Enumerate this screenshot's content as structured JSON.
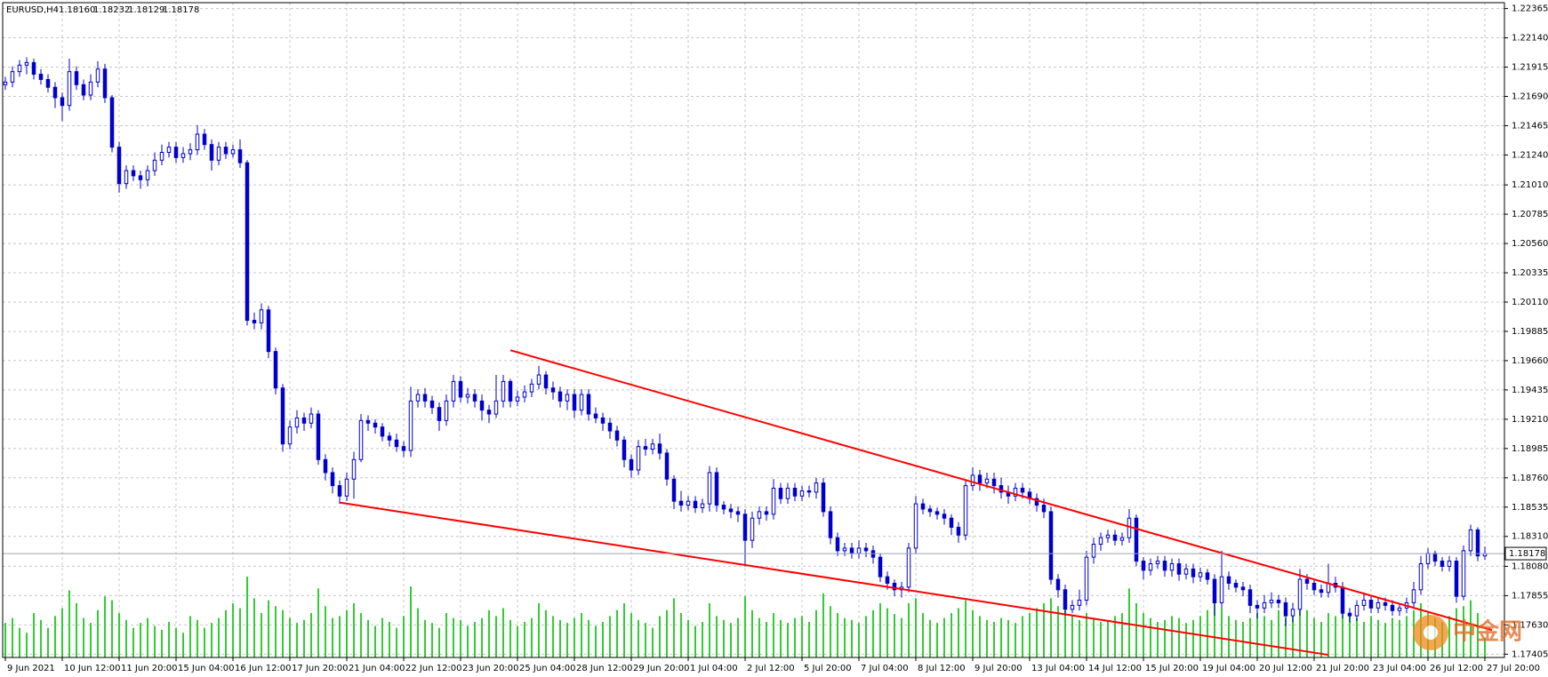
{
  "chart_data": {
    "type": "candlestick",
    "symbol": "EURUSD,H4",
    "last_bar_labels": [
      "1.18160",
      "1.18232",
      "1.18129",
      "1.18178"
    ],
    "watermark": "中金网",
    "up_color": "#ffffff",
    "down_color": "#0000cc",
    "line_color": "#0000cc",
    "volume_color": "#32cd32",
    "grid": true,
    "ylim": [
      1.1738,
      1.2241
    ],
    "yticks": [
      1.22365,
      {
        "value": 1.2214,
        "label": "1.22140"
      },
      1.21915,
      {
        "value": 1.2169,
        "label": "1.21690"
      },
      1.21465,
      {
        "value": 1.2124,
        "label": "1.21240"
      },
      {
        "value": 1.2101,
        "label": "1.21010"
      },
      1.20785,
      {
        "value": 1.2056,
        "label": "1.20560"
      },
      1.20335,
      {
        "value": 1.2011,
        "label": "1.20110"
      },
      1.19885,
      {
        "value": 1.1966,
        "label": "1.19660"
      },
      1.19435,
      {
        "value": 1.1921,
        "label": "1.19210"
      },
      1.18985,
      {
        "value": 1.1876,
        "label": "1.18760"
      },
      1.18535,
      {
        "value": 1.1831,
        "label": "1.18310"
      },
      {
        "value": 1.1808,
        "label": "1.18080"
      },
      1.17855,
      {
        "value": 1.1763,
        "label": "1.17630"
      },
      1.17405
    ],
    "categories": [
      "9 Jun 2021",
      null,
      null,
      null,
      null,
      null,
      null,
      null,
      "10 Jun 12:00",
      null,
      null,
      null,
      null,
      null,
      null,
      null,
      "11 Jun 20:00",
      null,
      null,
      null,
      null,
      null,
      null,
      null,
      "15 Jun 04:00",
      null,
      null,
      null,
      null,
      null,
      null,
      null,
      "16 Jun 12:00",
      null,
      null,
      null,
      null,
      null,
      null,
      null,
      "17 Jun 20:00",
      null,
      null,
      null,
      null,
      null,
      null,
      null,
      "21 Jun 04:00",
      null,
      null,
      null,
      null,
      null,
      null,
      null,
      "22 Jun 12:00",
      null,
      null,
      null,
      null,
      null,
      null,
      null,
      "23 Jun 20:00",
      null,
      null,
      null,
      null,
      null,
      null,
      null,
      "25 Jun 04:00",
      null,
      null,
      null,
      null,
      null,
      null,
      null,
      "28 Jun 12:00",
      null,
      null,
      null,
      null,
      null,
      null,
      null,
      "29 Jun 20:00",
      null,
      null,
      null,
      null,
      null,
      null,
      null,
      "1 Jul 04:00",
      null,
      null,
      null,
      null,
      null,
      null,
      null,
      "2 Jul 12:00",
      null,
      null,
      null,
      null,
      null,
      null,
      null,
      "5 Jul 20:00",
      null,
      null,
      null,
      null,
      null,
      null,
      null,
      "7 Jul 04:00",
      null,
      null,
      null,
      null,
      null,
      null,
      null,
      "8 Jul 12:00",
      null,
      null,
      null,
      null,
      null,
      null,
      null,
      "9 Jul 20:00",
      null,
      null,
      null,
      null,
      null,
      null,
      null,
      "13 Jul 04:00",
      null,
      null,
      null,
      null,
      null,
      null,
      null,
      "14 Jul 12:00",
      null,
      null,
      null,
      null,
      null,
      null,
      null,
      "15 Jul 20:00",
      null,
      null,
      null,
      null,
      null,
      null,
      null,
      "19 Jul 04:00",
      null,
      null,
      null,
      null,
      null,
      null,
      null,
      "20 Jul 12:00",
      null,
      null,
      null,
      null,
      null,
      null,
      null,
      "21 Jul 20:00",
      null,
      null,
      null,
      null,
      null,
      null,
      null,
      "23 Jul 04:00",
      null,
      null,
      null,
      null,
      null,
      null,
      null,
      "26 Jul 12:00",
      null,
      null,
      null,
      null,
      null,
      null,
      null,
      "27 Jul 20:00"
    ],
    "open": [
      1.2178,
      1.218,
      1.2188,
      1.2193,
      1.2195,
      1.2186,
      1.2182,
      1.2176,
      1.2168,
      1.2162,
      1.2188,
      1.2178,
      1.217,
      1.218,
      1.219,
      1.2168,
      1.213,
      1.2102,
      1.2112,
      1.2108,
      1.2105,
      1.2112,
      1.212,
      1.2126,
      1.213,
      1.2122,
      1.2125,
      1.2128,
      1.214,
      1.2132,
      1.212,
      1.213,
      1.2125,
      1.2128,
      1.2118,
      1.1997,
      1.1995,
      1.2005,
      1.1973,
      1.1945,
      1.1902,
      1.1915,
      1.1922,
      1.1918,
      1.1925,
      1.189,
      1.188,
      1.187,
      1.1862,
      1.1875,
      1.189,
      1.192,
      1.1918,
      1.1915,
      1.1908,
      1.1905,
      1.19,
      1.1897,
      1.1935,
      1.194,
      1.1935,
      1.193,
      1.192,
      1.1935,
      1.195,
      1.1938,
      1.194,
      1.1935,
      1.1928,
      1.1925,
      1.1935,
      1.195,
      1.1935,
      1.1938,
      1.1942,
      1.1948,
      1.1955,
      1.1945,
      1.1942,
      1.1935,
      1.194,
      1.1928,
      1.194,
      1.1925,
      1.1922,
      1.1918,
      1.1912,
      1.1905,
      1.189,
      1.1882,
      1.19,
      1.1898,
      1.1902,
      1.1895,
      1.1875,
      1.1858,
      1.1855,
      1.1858,
      1.1853,
      1.1856,
      1.188,
      1.1855,
      1.1852,
      1.185,
      1.1848,
      1.1828,
      1.1845,
      1.185,
      1.1848,
      1.1868,
      1.186,
      1.1868,
      1.1862,
      1.1866,
      1.1865,
      1.1872,
      1.185,
      1.183,
      1.182,
      1.1822,
      1.1818,
      1.1822,
      1.182,
      1.1815,
      1.18,
      1.1795,
      1.179,
      1.1792,
      1.1822,
      1.1856,
      1.1852,
      1.185,
      1.1848,
      1.1845,
      1.1838,
      1.1832,
      1.187,
      1.1878,
      1.1872,
      1.1875,
      1.187,
      1.1865,
      1.1862,
      1.1868,
      1.1865,
      1.186,
      1.1855,
      1.185,
      1.1798,
      1.179,
      1.1775,
      1.1778,
      1.1782,
      1.1815,
      1.1825,
      1.183,
      1.1832,
      1.1828,
      1.183,
      1.1845,
      1.1812,
      1.1805,
      1.181,
      1.1812,
      1.1805,
      1.181,
      1.1802,
      1.1806,
      1.18,
      1.1803,
      1.1798,
      1.178,
      1.18,
      1.1795,
      1.1792,
      1.179,
      1.1778,
      1.1776,
      1.178,
      1.1782,
      1.178,
      1.177,
      1.1775,
      1.1798,
      1.1795,
      1.179,
      1.1788,
      1.1795,
      1.1792,
      1.1772,
      1.177,
      1.1778,
      1.1782,
      1.1776,
      1.178,
      1.1778,
      1.1774,
      1.1776,
      1.178,
      1.179,
      1.181,
      1.1818,
      1.1812,
      1.1808,
      1.1812,
      1.1785,
      1.182,
      1.1836,
      1.1816
    ],
    "high": [
      1.2184,
      1.2192,
      1.2197,
      1.2199,
      1.2198,
      1.219,
      1.2186,
      1.218,
      1.2172,
      1.2198,
      1.2192,
      1.2182,
      1.2186,
      1.2196,
      1.2194,
      1.217,
      1.2134,
      1.2116,
      1.2116,
      1.2112,
      1.2116,
      1.2126,
      1.2132,
      1.2134,
      1.2134,
      1.213,
      1.2133,
      1.2147,
      1.2144,
      1.2136,
      1.2134,
      1.2134,
      1.2132,
      1.2136,
      1.212,
      1.2003,
      1.201,
      1.2008,
      1.1976,
      1.1948,
      1.192,
      1.1928,
      1.1926,
      1.193,
      1.1928,
      1.1894,
      1.1884,
      1.1874,
      1.188,
      1.1896,
      1.1925,
      1.1924,
      1.1921,
      1.1918,
      1.1911,
      1.191,
      1.1904,
      1.1946,
      1.1944,
      1.1945,
      1.1939,
      1.1934,
      1.194,
      1.1955,
      1.1954,
      1.1945,
      1.1944,
      1.194,
      1.1932,
      1.1955,
      1.1955,
      1.1952,
      1.1943,
      1.1947,
      1.1952,
      1.1962,
      1.1958,
      1.195,
      1.1946,
      1.1944,
      1.1944,
      1.1944,
      1.1944,
      1.193,
      1.1926,
      1.1922,
      1.1916,
      1.1908,
      1.1894,
      1.1905,
      1.1906,
      1.1906,
      1.191,
      1.1898,
      1.1878,
      1.1866,
      1.1862,
      1.1862,
      1.186,
      1.1885,
      1.1884,
      1.1858,
      1.1856,
      1.1854,
      1.1852,
      1.185,
      1.1854,
      1.1854,
      1.1875,
      1.1872,
      1.1872,
      1.1872,
      1.187,
      1.187,
      1.1876,
      1.1876,
      1.1854,
      1.1834,
      1.1826,
      1.1826,
      1.1828,
      1.1826,
      1.1824,
      1.1818,
      1.1804,
      1.1798,
      1.1796,
      1.1826,
      1.1862,
      1.186,
      1.1855,
      1.1853,
      1.1852,
      1.1848,
      1.1842,
      1.1874,
      1.1884,
      1.1882,
      1.188,
      1.188,
      1.1876,
      1.187,
      1.1872,
      1.1872,
      1.1868,
      1.1864,
      1.186,
      1.1854,
      1.1802,
      1.1794,
      1.1782,
      1.179,
      1.182,
      1.183,
      1.1834,
      1.1836,
      1.1836,
      1.1834,
      1.1852,
      1.1848,
      1.1815,
      1.1814,
      1.1816,
      1.1816,
      1.1814,
      1.1814,
      1.181,
      1.181,
      1.1807,
      1.1806,
      1.1802,
      1.182,
      1.1804,
      1.1798,
      1.1796,
      1.1794,
      1.1782,
      1.1786,
      1.1788,
      1.1786,
      1.1784,
      1.178,
      1.1806,
      1.1802,
      1.1798,
      1.1794,
      1.181,
      1.18,
      1.1796,
      1.1776,
      1.1782,
      1.1788,
      1.1786,
      1.1784,
      1.1784,
      1.1782,
      1.178,
      1.1784,
      1.1796,
      1.1816,
      1.1822,
      1.182,
      1.1815,
      1.1816,
      1.1815,
      1.1824,
      1.184,
      1.1838,
      1.18232
    ],
    "low": [
      1.2174,
      1.2176,
      1.2184,
      1.2186,
      1.2182,
      1.2178,
      1.2172,
      1.216,
      1.215,
      1.2158,
      1.2174,
      1.2166,
      1.2166,
      1.2176,
      1.2164,
      1.2126,
      1.2095,
      1.2098,
      1.2104,
      1.2098,
      1.21,
      1.2108,
      1.2116,
      1.2122,
      1.2118,
      1.2118,
      1.212,
      1.2124,
      1.2128,
      1.2112,
      1.2116,
      1.2121,
      1.2122,
      1.2114,
      1.1993,
      1.199,
      1.199,
      1.1968,
      1.194,
      1.1896,
      1.1898,
      1.191,
      1.1912,
      1.1914,
      1.1886,
      1.1874,
      1.1864,
      1.1856,
      1.1858,
      1.186,
      1.1888,
      1.1912,
      1.191,
      1.1904,
      1.19,
      1.1896,
      1.1892,
      1.1892,
      1.193,
      1.193,
      1.1925,
      1.1912,
      1.1916,
      1.193,
      1.1934,
      1.1933,
      1.193,
      1.192,
      1.1918,
      1.1922,
      1.193,
      1.193,
      1.1931,
      1.1934,
      1.1938,
      1.1944,
      1.194,
      1.1936,
      1.193,
      1.1928,
      1.1922,
      1.1924,
      1.192,
      1.1918,
      1.1912,
      1.1906,
      1.19,
      1.1884,
      1.1876,
      1.1878,
      1.1893,
      1.1894,
      1.189,
      1.187,
      1.1852,
      1.185,
      1.1851,
      1.1849,
      1.1849,
      1.185,
      1.185,
      1.1848,
      1.1845,
      1.1842,
      1.1808,
      1.1822,
      1.184,
      1.1843,
      1.1844,
      1.1856,
      1.1856,
      1.1858,
      1.1858,
      1.1861,
      1.186,
      1.1846,
      1.1825,
      1.1816,
      1.1816,
      1.1814,
      1.1814,
      1.1815,
      1.181,
      1.1796,
      1.179,
      1.1785,
      1.1784,
      1.1788,
      1.1818,
      1.1848,
      1.1846,
      1.1844,
      1.184,
      1.1832,
      1.1826,
      1.1828,
      1.1866,
      1.1866,
      1.1868,
      1.1864,
      1.186,
      1.1856,
      1.1858,
      1.186,
      1.1856,
      1.185,
      1.1845,
      1.1794,
      1.1784,
      1.177,
      1.1772,
      1.1774,
      1.1778,
      1.181,
      1.182,
      1.1826,
      1.1824,
      1.1824,
      1.1826,
      1.1808,
      1.1798,
      1.1801,
      1.1806,
      1.18,
      1.18,
      1.1797,
      1.1798,
      1.1795,
      1.1796,
      1.1794,
      1.177,
      1.1776,
      1.179,
      1.1788,
      1.1785,
      1.1772,
      1.1768,
      1.1772,
      1.1776,
      1.1776,
      1.1762,
      1.1765,
      1.177,
      1.179,
      1.1786,
      1.1784,
      1.1784,
      1.1788,
      1.1768,
      1.1765,
      1.1766,
      1.1774,
      1.1772,
      1.1772,
      1.1774,
      1.177,
      1.177,
      1.1772,
      1.1776,
      1.1786,
      1.1806,
      1.1808,
      1.1804,
      1.1804,
      1.178,
      1.1782,
      1.1816,
      1.1812,
      1.18129
    ],
    "close": [
      1.218,
      1.2188,
      1.2193,
      1.2195,
      1.2186,
      1.2182,
      1.2176,
      1.2168,
      1.2162,
      1.2188,
      1.2178,
      1.217,
      1.218,
      1.219,
      1.2168,
      1.213,
      1.2102,
      1.2112,
      1.2108,
      1.2105,
      1.2112,
      1.212,
      1.2126,
      1.213,
      1.2122,
      1.2125,
      1.2128,
      1.214,
      1.2132,
      1.212,
      1.213,
      1.2125,
      1.2128,
      1.2118,
      1.1997,
      1.1995,
      1.2005,
      1.1973,
      1.1945,
      1.1902,
      1.1915,
      1.1922,
      1.1918,
      1.1925,
      1.189,
      1.188,
      1.187,
      1.1862,
      1.1875,
      1.189,
      1.192,
      1.1918,
      1.1915,
      1.1908,
      1.1905,
      1.19,
      1.1897,
      1.1935,
      1.194,
      1.1935,
      1.193,
      1.192,
      1.1935,
      1.195,
      1.1938,
      1.194,
      1.1935,
      1.1928,
      1.1925,
      1.1935,
      1.195,
      1.1935,
      1.1938,
      1.1942,
      1.1948,
      1.1955,
      1.1945,
      1.1942,
      1.1935,
      1.194,
      1.1928,
      1.194,
      1.1925,
      1.1922,
      1.1918,
      1.1912,
      1.1905,
      1.189,
      1.1882,
      1.19,
      1.1898,
      1.1902,
      1.1895,
      1.1875,
      1.1858,
      1.1855,
      1.1858,
      1.1853,
      1.1856,
      1.188,
      1.1855,
      1.1852,
      1.185,
      1.1848,
      1.1828,
      1.1845,
      1.185,
      1.1848,
      1.1868,
      1.186,
      1.1868,
      1.1862,
      1.1866,
      1.1865,
      1.1872,
      1.185,
      1.183,
      1.182,
      1.1822,
      1.1818,
      1.1822,
      1.182,
      1.1815,
      1.18,
      1.1795,
      1.179,
      1.1792,
      1.1822,
      1.1856,
      1.1852,
      1.185,
      1.1848,
      1.1845,
      1.1838,
      1.1832,
      1.187,
      1.1878,
      1.1872,
      1.1875,
      1.187,
      1.1865,
      1.1862,
      1.1868,
      1.1865,
      1.186,
      1.1855,
      1.185,
      1.1798,
      1.179,
      1.1775,
      1.1778,
      1.1782,
      1.1815,
      1.1825,
      1.183,
      1.1832,
      1.1828,
      1.183,
      1.1845,
      1.1812,
      1.1805,
      1.181,
      1.1812,
      1.1805,
      1.181,
      1.1802,
      1.1806,
      1.18,
      1.1803,
      1.1798,
      1.178,
      1.18,
      1.1795,
      1.1792,
      1.179,
      1.1778,
      1.1776,
      1.178,
      1.1782,
      1.178,
      1.177,
      1.1775,
      1.1798,
      1.1795,
      1.179,
      1.1788,
      1.1795,
      1.1792,
      1.1772,
      1.177,
      1.1778,
      1.1782,
      1.1776,
      1.178,
      1.1778,
      1.1774,
      1.1776,
      1.178,
      1.179,
      1.181,
      1.1818,
      1.1812,
      1.1808,
      1.1812,
      1.1785,
      1.182,
      1.1836,
      1.1816,
      1.18178
    ],
    "volume": [
      35,
      40,
      30,
      25,
      45,
      38,
      30,
      42,
      50,
      68,
      55,
      40,
      35,
      48,
      62,
      58,
      45,
      38,
      30,
      35,
      40,
      32,
      28,
      36,
      30,
      25,
      42,
      38,
      30,
      35,
      40,
      48,
      55,
      50,
      82,
      60,
      45,
      58,
      52,
      48,
      40,
      35,
      38,
      45,
      70,
      52,
      40,
      42,
      48,
      55,
      45,
      38,
      32,
      40,
      36,
      30,
      42,
      72,
      50,
      38,
      35,
      30,
      45,
      40,
      38,
      32,
      36,
      40,
      48,
      42,
      50,
      38,
      32,
      36,
      40,
      55,
      48,
      42,
      38,
      35,
      40,
      45,
      38,
      32,
      36,
      42,
      48,
      55,
      45,
      38,
      35,
      30,
      42,
      48,
      60,
      45,
      38,
      32,
      36,
      55,
      42,
      38,
      35,
      40,
      62,
      48,
      40,
      36,
      45,
      38,
      35,
      40,
      42,
      36,
      48,
      65,
      52,
      45,
      40,
      38,
      35,
      42,
      48,
      55,
      50,
      44,
      40,
      55,
      60,
      45,
      38,
      35,
      40,
      45,
      50,
      58,
      48,
      42,
      38,
      36,
      40,
      38,
      35,
      42,
      45,
      50,
      55,
      60,
      52,
      48,
      42,
      38,
      45,
      40,
      36,
      38,
      42,
      45,
      70,
      55,
      45,
      40,
      36,
      38,
      42,
      40,
      35,
      38,
      42,
      48,
      62,
      50,
      42,
      38,
      36,
      40,
      45,
      42,
      38,
      48,
      40,
      42,
      55,
      48,
      40,
      36,
      45,
      42,
      50,
      44,
      40,
      36,
      42,
      38,
      35,
      40,
      38,
      42,
      48,
      55,
      45,
      40,
      36,
      42,
      50,
      52,
      58,
      45,
      20
    ],
    "trendlines": [
      {
        "color": "#ff0000",
        "from": [
          71,
          1.1974
        ],
        "to": [
          209,
          1.1759
        ]
      },
      {
        "color": "#ff0000",
        "from": [
          47,
          1.1857
        ],
        "to": [
          186,
          1.174
        ]
      }
    ]
  }
}
